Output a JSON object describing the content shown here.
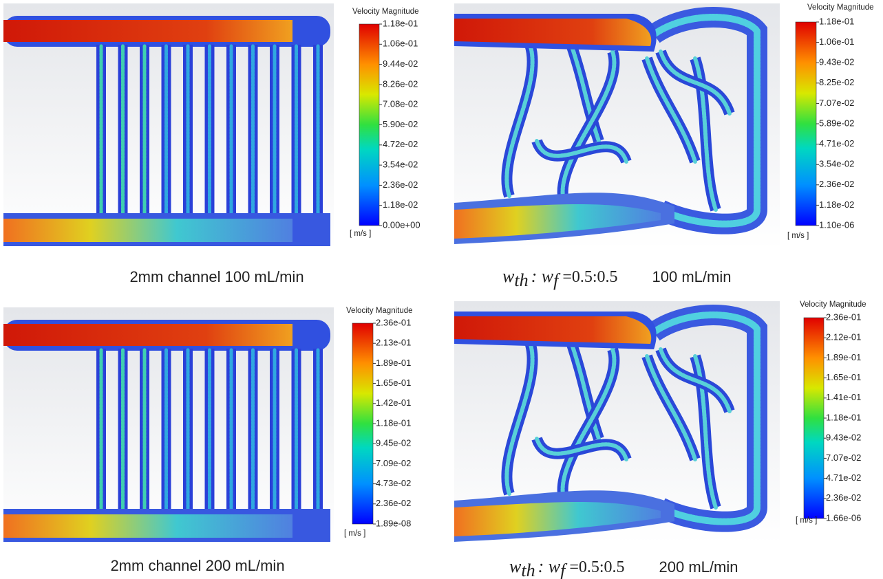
{
  "panels": [
    {
      "legend": {
        "title": "Velocity Magnitude",
        "ticks": [
          "1.18e-01",
          "1.06e-01",
          "9.44e-02",
          "8.26e-02",
          "7.08e-02",
          "5.90e-02",
          "4.72e-02",
          "3.54e-02",
          "2.36e-02",
          "1.18e-02",
          "0.00e+00"
        ],
        "unit": "[ m/s ]"
      },
      "caption": {
        "text": "2mm channel  100 mL/min"
      }
    },
    {
      "legend": {
        "title": "Velocity Magnitude",
        "ticks": [
          "1.18e-01",
          "1.06e-01",
          "9.43e-02",
          "8.25e-02",
          "7.07e-02",
          "5.89e-02",
          "4.71e-02",
          "3.54e-02",
          "2.36e-02",
          "1.18e-02",
          "1.10e-06"
        ],
        "unit": "[ m/s ]"
      },
      "caption": {
        "symbol_1": "w",
        "sub_1": "th",
        "separator": ": w",
        "sub_2": "f",
        "ratio": "=0.5:0.5",
        "flow": "100 mL/min"
      }
    },
    {
      "legend": {
        "title": "Velocity Magnitude",
        "ticks": [
          "2.36e-01",
          "2.13e-01",
          "1.89e-01",
          "1.65e-01",
          "1.42e-01",
          "1.18e-01",
          "9.45e-02",
          "7.09e-02",
          "4.73e-02",
          "2.36e-02",
          "1.89e-08"
        ],
        "unit": "[ m/s ]"
      },
      "caption": {
        "text": "2mm channel  200 mL/min"
      }
    },
    {
      "legend": {
        "title": "Velocity Magnitude",
        "ticks": [
          "2.36e-01",
          "2.12e-01",
          "1.89e-01",
          "1.65e-01",
          "1.41e-01",
          "1.18e-01",
          "9.43e-02",
          "7.07e-02",
          "4.71e-02",
          "2.36e-02",
          "1.66e-06"
        ],
        "unit": "[ m/s ]"
      },
      "caption": {
        "symbol_1": "w",
        "sub_1": "th",
        "separator": ": w",
        "sub_2": "f",
        "ratio": "=0.5:0.5",
        "flow": "200 mL/min"
      }
    }
  ]
}
